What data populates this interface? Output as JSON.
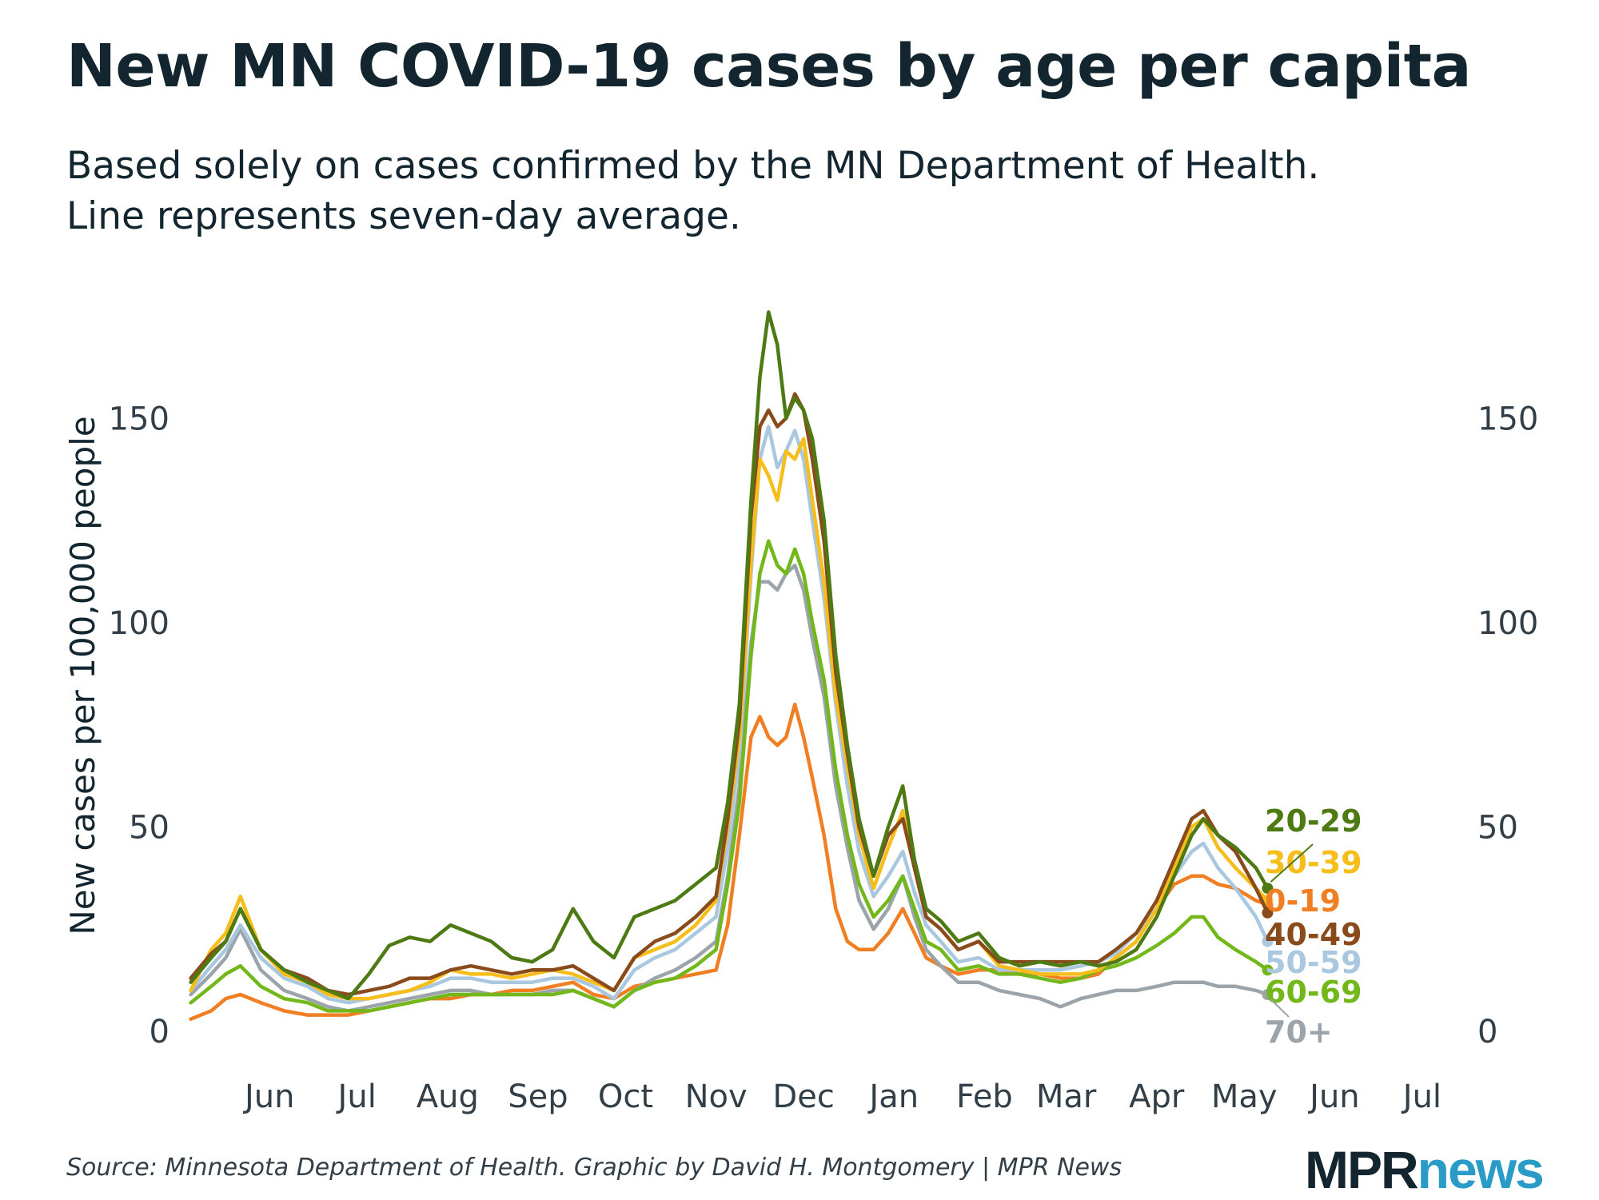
{
  "title": "New MN COVID-19 cases by age per capita",
  "subtitle_line1": "Based solely on cases confirmed by the MN Department of Health.",
  "subtitle_line2": "Line represents seven-day average.",
  "source": "Source: Minnesota Department of Health. Graphic by David H. Montgomery | MPR News",
  "logo": {
    "part1": "MPR",
    "part2": "news"
  },
  "chart_data": {
    "type": "line",
    "ylabel": "New cases per 100,000 people",
    "ylim": [
      0,
      180
    ],
    "yticks": [
      0,
      50,
      100,
      150
    ],
    "x_domain": [
      "2020-05-04",
      "2021-07-15"
    ],
    "x_ticks": [
      {
        "date": "2020-06-01",
        "label": "Jun"
      },
      {
        "date": "2020-07-01",
        "label": "Jul"
      },
      {
        "date": "2020-08-01",
        "label": "Aug"
      },
      {
        "date": "2020-09-01",
        "label": "Sep"
      },
      {
        "date": "2020-10-01",
        "label": "Oct"
      },
      {
        "date": "2020-11-01",
        "label": "Nov"
      },
      {
        "date": "2020-12-01",
        "label": "Dec"
      },
      {
        "date": "2021-01-01",
        "label": "Jan"
      },
      {
        "date": "2021-02-01",
        "label": "Feb"
      },
      {
        "date": "2021-03-01",
        "label": "Mar"
      },
      {
        "date": "2021-04-01",
        "label": "Apr"
      },
      {
        "date": "2021-05-01",
        "label": "May"
      },
      {
        "date": "2021-06-01",
        "label": "Jun"
      },
      {
        "date": "2021-07-01",
        "label": "Jul"
      }
    ],
    "x": [
      "2020-05-05",
      "2020-05-12",
      "2020-05-17",
      "2020-05-22",
      "2020-05-29",
      "2020-06-06",
      "2020-06-14",
      "2020-06-21",
      "2020-06-28",
      "2020-07-05",
      "2020-07-12",
      "2020-07-19",
      "2020-07-26",
      "2020-08-02",
      "2020-08-09",
      "2020-08-16",
      "2020-08-23",
      "2020-08-30",
      "2020-09-06",
      "2020-09-13",
      "2020-09-20",
      "2020-09-27",
      "2020-10-04",
      "2020-10-11",
      "2020-10-18",
      "2020-10-25",
      "2020-11-01",
      "2020-11-05",
      "2020-11-09",
      "2020-11-13",
      "2020-11-16",
      "2020-11-19",
      "2020-11-22",
      "2020-11-25",
      "2020-11-28",
      "2020-12-01",
      "2020-12-04",
      "2020-12-08",
      "2020-12-12",
      "2020-12-16",
      "2020-12-20",
      "2020-12-25",
      "2020-12-30",
      "2021-01-04",
      "2021-01-08",
      "2021-01-12",
      "2021-01-17",
      "2021-01-23",
      "2021-01-30",
      "2021-02-06",
      "2021-02-13",
      "2021-02-20",
      "2021-02-27",
      "2021-03-06",
      "2021-03-12",
      "2021-03-18",
      "2021-03-25",
      "2021-04-01",
      "2021-04-07",
      "2021-04-13",
      "2021-04-17",
      "2021-04-22",
      "2021-04-28",
      "2021-05-05",
      "2021-05-09"
    ],
    "series": [
      {
        "name": "20-29",
        "color": "#4e7a14",
        "values": [
          12,
          18,
          22,
          30,
          20,
          15,
          12,
          10,
          8,
          14,
          21,
          23,
          22,
          26,
          24,
          22,
          18,
          17,
          20,
          30,
          22,
          18,
          28,
          30,
          32,
          36,
          40,
          56,
          80,
          130,
          160,
          176,
          168,
          150,
          155,
          152,
          145,
          125,
          92,
          70,
          52,
          38,
          50,
          60,
          42,
          30,
          27,
          22,
          24,
          18,
          16,
          17,
          16,
          17,
          16,
          17,
          20,
          28,
          38,
          48,
          52,
          48,
          45,
          40,
          35
        ]
      },
      {
        "name": "30-39",
        "color": "#f6be1a",
        "values": [
          10,
          20,
          24,
          33,
          20,
          14,
          12,
          9,
          8,
          8,
          9,
          10,
          12,
          15,
          14,
          14,
          13,
          14,
          15,
          14,
          12,
          10,
          18,
          20,
          22,
          26,
          32,
          50,
          72,
          115,
          140,
          136,
          130,
          142,
          140,
          145,
          130,
          110,
          82,
          65,
          48,
          35,
          45,
          54,
          40,
          28,
          25,
          20,
          22,
          16,
          15,
          14,
          14,
          14,
          15,
          18,
          22,
          30,
          40,
          50,
          52,
          45,
          40,
          35,
          32
        ]
      },
      {
        "name": "0-19",
        "color": "#f07f24",
        "values": [
          3,
          5,
          8,
          9,
          7,
          5,
          4,
          4,
          4,
          5,
          6,
          7,
          8,
          8,
          9,
          9,
          10,
          10,
          11,
          12,
          9,
          8,
          11,
          12,
          13,
          14,
          15,
          26,
          48,
          72,
          77,
          72,
          70,
          72,
          80,
          72,
          62,
          48,
          30,
          22,
          20,
          20,
          24,
          30,
          24,
          18,
          16,
          14,
          15,
          15,
          14,
          14,
          13,
          13,
          14,
          18,
          22,
          30,
          36,
          38,
          38,
          36,
          35,
          32,
          31
        ]
      },
      {
        "name": "40-49",
        "color": "#8a4b1c",
        "values": [
          13,
          19,
          22,
          30,
          20,
          15,
          13,
          10,
          9,
          10,
          11,
          13,
          13,
          15,
          16,
          15,
          14,
          15,
          15,
          16,
          13,
          10,
          18,
          22,
          24,
          28,
          33,
          52,
          76,
          126,
          148,
          152,
          148,
          150,
          156,
          152,
          140,
          120,
          88,
          68,
          50,
          38,
          48,
          52,
          40,
          28,
          25,
          20,
          22,
          17,
          17,
          17,
          17,
          17,
          17,
          20,
          24,
          32,
          42,
          52,
          54,
          48,
          44,
          35,
          29
        ]
      },
      {
        "name": "50-59",
        "color": "#a9c8df",
        "values": [
          10,
          16,
          20,
          26,
          18,
          13,
          11,
          8,
          7,
          8,
          9,
          10,
          11,
          13,
          13,
          12,
          12,
          12,
          13,
          13,
          11,
          8,
          15,
          18,
          20,
          24,
          28,
          45,
          68,
          112,
          140,
          148,
          138,
          142,
          147,
          140,
          125,
          106,
          80,
          60,
          44,
          33,
          38,
          44,
          34,
          26,
          22,
          17,
          18,
          15,
          15,
          15,
          15,
          16,
          17,
          19,
          24,
          30,
          38,
          44,
          46,
          40,
          35,
          28,
          22
        ]
      },
      {
        "name": "60-69",
        "color": "#72b81b",
        "values": [
          7,
          11,
          14,
          16,
          11,
          8,
          7,
          5,
          5,
          5,
          6,
          7,
          8,
          9,
          9,
          9,
          9,
          9,
          9,
          10,
          8,
          6,
          10,
          12,
          13,
          16,
          20,
          36,
          56,
          92,
          112,
          120,
          114,
          112,
          118,
          112,
          100,
          86,
          64,
          48,
          36,
          28,
          32,
          38,
          30,
          22,
          20,
          15,
          16,
          14,
          14,
          13,
          12,
          13,
          15,
          16,
          18,
          21,
          24,
          28,
          28,
          23,
          20,
          17,
          15
        ]
      },
      {
        "name": "70+",
        "color": "#9aa4aa",
        "values": [
          9,
          14,
          18,
          25,
          15,
          10,
          8,
          6,
          5,
          6,
          7,
          8,
          9,
          10,
          10,
          9,
          9,
          9,
          10,
          10,
          8,
          6,
          10,
          13,
          15,
          18,
          22,
          38,
          60,
          95,
          110,
          110,
          108,
          112,
          114,
          108,
          96,
          82,
          60,
          45,
          32,
          25,
          30,
          38,
          28,
          20,
          16,
          12,
          12,
          10,
          9,
          8,
          6,
          8,
          9,
          10,
          10,
          11,
          12,
          12,
          12,
          11,
          11,
          10,
          9
        ]
      }
    ],
    "labels_order": [
      "20-29",
      "30-39",
      "0-19",
      "40-49",
      "50-59",
      "60-69",
      "70+"
    ],
    "grid": false,
    "legend": "direct labels at line ends"
  }
}
